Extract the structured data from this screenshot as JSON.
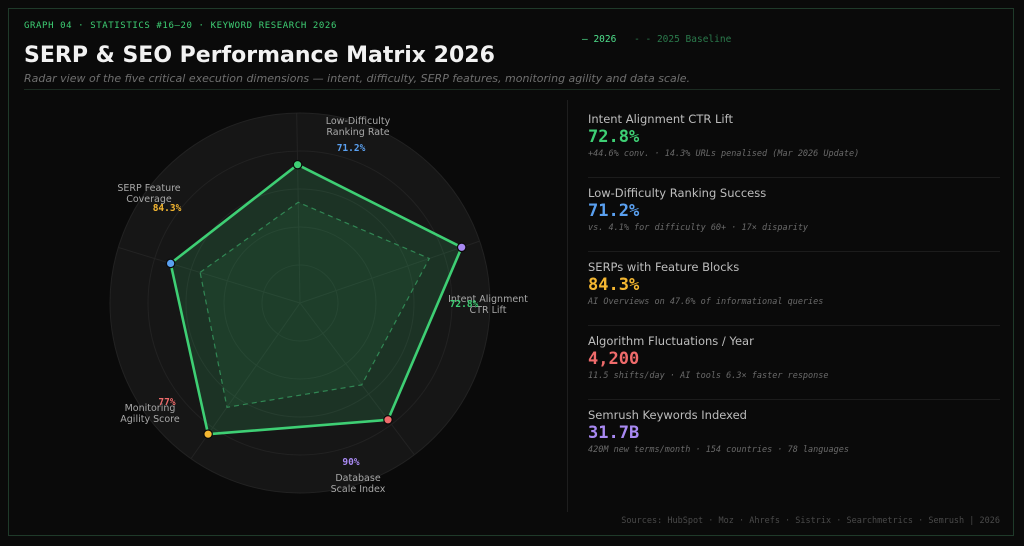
{
  "header": {
    "topline": "GRAPH 04  ·  STATISTICS #16–20  ·  KEYWORD RESEARCH 2026",
    "title": "SERP & SEO Performance Matrix 2026",
    "subtitle": "Radar view of the five critical execution dimensions — intent, difficulty, SERP features, monitoring agility and data scale."
  },
  "legend": {
    "current": "— 2026",
    "baseline": "- - 2025 Baseline"
  },
  "colors": {
    "accent": "#3ecf74",
    "intent": "#3ecf74",
    "difficulty": "#5aa0f0",
    "serp": "#f5b731",
    "monitoring": "#ef6b6b",
    "scale": "#a889f2"
  },
  "chart_data": {
    "type": "radar",
    "categories": [
      "Low-Difficulty Ranking Rate",
      "Intent Alignment CTR Lift",
      "Database Scale Index",
      "Monitoring Agility Score",
      "SERP Feature Coverage"
    ],
    "axis_labels": [
      [
        "Low-Difficulty",
        "Ranking Rate"
      ],
      [
        "Intent Alignment",
        "CTR Lift"
      ],
      [
        "Database",
        "Scale Index"
      ],
      [
        "Monitoring",
        "Agility Score"
      ],
      [
        "SERP Feature",
        "Coverage"
      ]
    ],
    "value_labels": [
      "71.2%",
      "72.8%",
      "90%",
      "77%",
      "84.3%"
    ],
    "point_colors": [
      "#5aa0f0",
      "#3ecf74",
      "#a889f2",
      "#ef6b6b",
      "#f5b731"
    ],
    "series": [
      {
        "name": "2026",
        "values": [
          71.2,
          72.8,
          90,
          77,
          84.3
        ]
      },
      {
        "name": "2025 Baseline",
        "values": [
          55,
          53,
          72,
          54,
          67
        ]
      }
    ],
    "rlim": [
      0,
      100
    ],
    "rings": 5
  },
  "stats": [
    {
      "label": "Intent Alignment CTR Lift",
      "value": "72.8%",
      "note": "+44.6% conv. · 14.3% URLs penalised (Mar 2026 Update)",
      "color": "#3ecf74"
    },
    {
      "label": "Low-Difficulty Ranking Success",
      "value": "71.2%",
      "note": "vs. 4.1% for difficulty 60+  ·  17× disparity",
      "color": "#5aa0f0"
    },
    {
      "label": "SERPs with Feature Blocks",
      "value": "84.3%",
      "note": "AI Overviews on 47.6% of informational queries",
      "color": "#f5b731"
    },
    {
      "label": "Algorithm Fluctuations / Year",
      "value": "4,200",
      "note": "11.5 shifts/day · AI tools 6.3× faster response",
      "color": "#ef6b6b"
    },
    {
      "label": "Semrush Keywords Indexed",
      "value": "31.7B",
      "note": "420M new terms/month · 154 countries · 78 languages",
      "color": "#a889f2"
    }
  ],
  "footer": {
    "sources": "Sources: HubSpot · Moz · Ahrefs · Sistrix · Searchmetrics · Semrush  |  2026"
  }
}
